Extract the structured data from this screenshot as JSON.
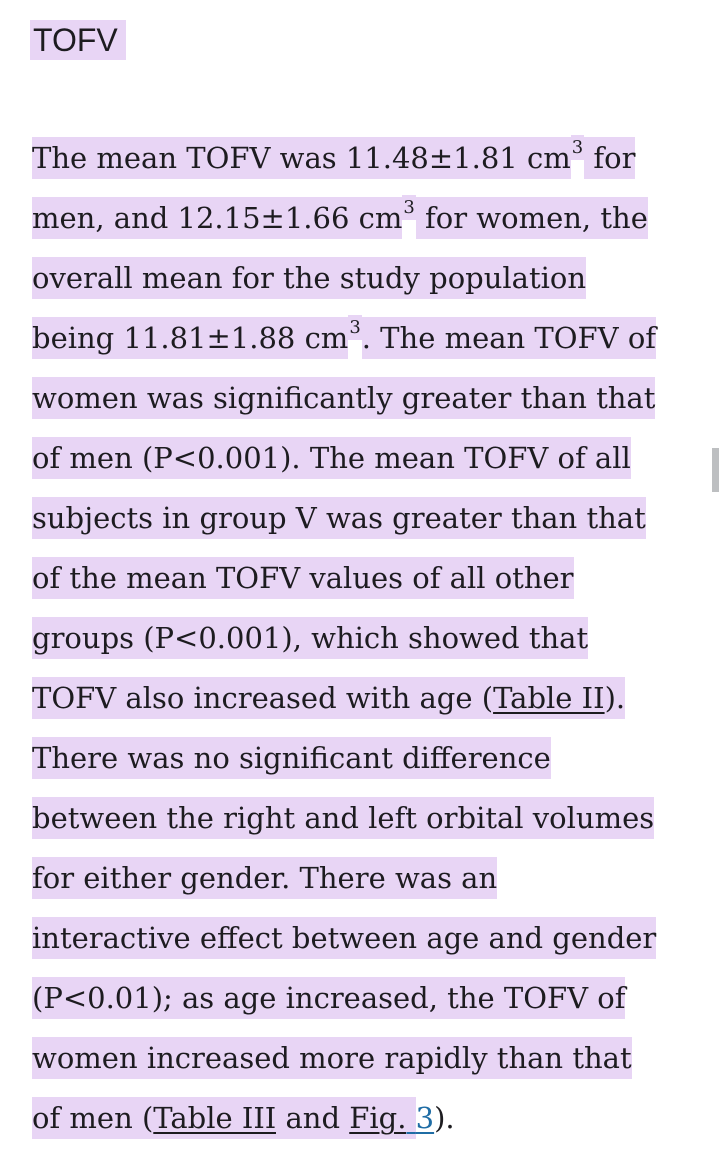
{
  "page": {
    "background_color": "#ffffff",
    "text_color": "#1d1c20",
    "highlight_color": "#e8d5f5",
    "link_blue_color": "#1f6da5",
    "link_dark_color": "#1d1c20",
    "scrollbar_color": "#bdbfc1"
  },
  "heading": {
    "text": "TOFV",
    "highlighted": true
  },
  "paragraph": {
    "lines": [
      {
        "runs": [
          {
            "text": "The mean TOFV was 11.48±1.81 cm",
            "hl": true
          },
          {
            "text": "3",
            "hl": true,
            "sup": true
          },
          {
            "text": " for",
            "hl": true
          }
        ]
      },
      {
        "runs": [
          {
            "text": "men, and 12.15±1.66 cm",
            "hl": true
          },
          {
            "text": "3",
            "hl": true,
            "sup": true
          },
          {
            "text": " for women, the",
            "hl": true
          }
        ]
      },
      {
        "runs": [
          {
            "text": "overall mean for the study population",
            "hl": true
          }
        ]
      },
      {
        "runs": [
          {
            "text": "being 11.81±1.88 cm",
            "hl": true
          },
          {
            "text": "3",
            "hl": true,
            "sup": true
          },
          {
            "text": ". The mean TOFV of",
            "hl": true
          }
        ]
      },
      {
        "runs": [
          {
            "text": "women was significantly greater than that",
            "hl": true
          }
        ]
      },
      {
        "runs": [
          {
            "text": "of men (P<0.001). The mean TOFV of all",
            "hl": true
          }
        ]
      },
      {
        "runs": [
          {
            "text": "subjects in group V was greater than that",
            "hl": true
          }
        ]
      },
      {
        "runs": [
          {
            "text": "of the mean TOFV values of all other",
            "hl": true
          }
        ]
      },
      {
        "runs": [
          {
            "text": "groups (P<0.001), which showed that",
            "hl": true
          }
        ]
      },
      {
        "runs": [
          {
            "text": "TOFV also increased with age (",
            "hl": true
          },
          {
            "text": "Table II",
            "hl": true,
            "link": "dark",
            "name": "table-ii-link"
          },
          {
            "text": ").",
            "hl": true
          }
        ]
      },
      {
        "runs": [
          {
            "text": "There was no significant difference",
            "hl": true
          }
        ]
      },
      {
        "runs": [
          {
            "text": "between the right and left orbital volumes",
            "hl": true
          }
        ]
      },
      {
        "runs": [
          {
            "text": "for either gender. There was an",
            "hl": true
          }
        ]
      },
      {
        "runs": [
          {
            "text": "interactive effect between age and gender",
            "hl": true
          }
        ]
      },
      {
        "runs": [
          {
            "text": "(P<0.01); as age increased, the TOFV of",
            "hl": true
          }
        ]
      },
      {
        "runs": [
          {
            "text": "women increased more rapidly than that",
            "hl": true
          }
        ]
      },
      {
        "runs": [
          {
            "text": "of men (",
            "hl": true
          },
          {
            "text": "Table III",
            "hl": true,
            "link": "dark",
            "name": "table-iii-link"
          },
          {
            "text": " and ",
            "hl": true
          },
          {
            "text": "Fig.",
            "hl": true,
            "link": "dark",
            "name": "fig-label-link"
          },
          {
            "text": " ",
            "hl": true,
            "link": "blue",
            "name": "fig-3-link"
          },
          {
            "text": "3",
            "hl": false,
            "link": "blue",
            "name": "fig-3-link"
          },
          {
            "text": ").",
            "hl": false
          }
        ]
      }
    ]
  },
  "scrollbar": {
    "visible": true
  }
}
